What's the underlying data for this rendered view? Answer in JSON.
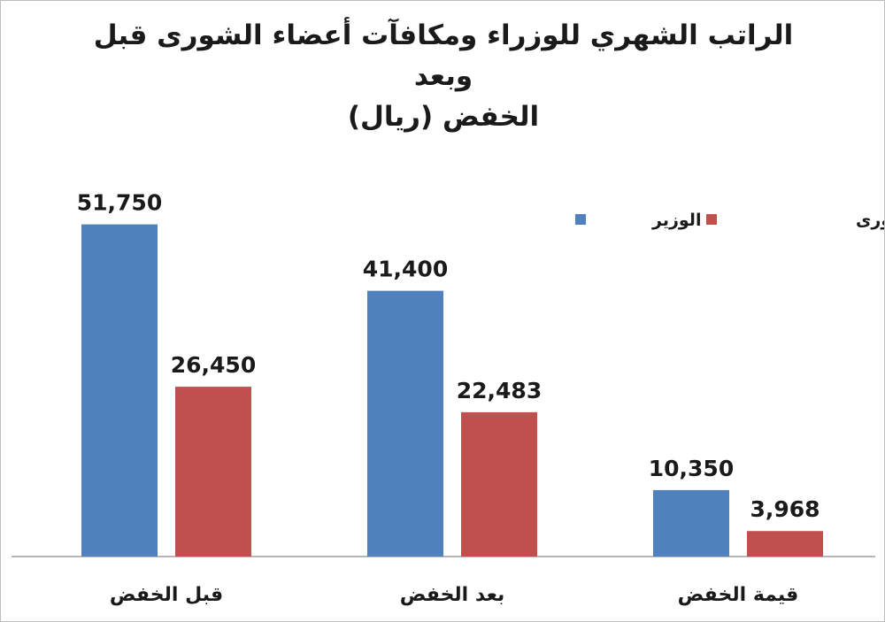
{
  "chart_data": {
    "type": "bar",
    "title_line1": "الراتب الشهري للوزراء ومكافآت أعضاء الشورى قبل وبعد",
    "title_line2": "الخفض (ريال)",
    "categories": [
      "قبل الخفض",
      "بعد الخفض",
      "قيمة الخفض"
    ],
    "series": [
      {
        "name": "الوزير",
        "color": "#4f81bd",
        "values": [
          51750,
          41400,
          10350
        ],
        "labels": [
          "51,750",
          "41,400",
          "10,350"
        ]
      },
      {
        "name": "عضو الشورى",
        "color": "#c0504d",
        "values": [
          26450,
          22483,
          3968
        ],
        "labels": [
          "26,450",
          "22,483",
          "3,968"
        ]
      }
    ],
    "ylim": [
      0,
      55000
    ],
    "grid": false,
    "legend_position": "top-right",
    "axis_color": "#9e9e9e"
  }
}
